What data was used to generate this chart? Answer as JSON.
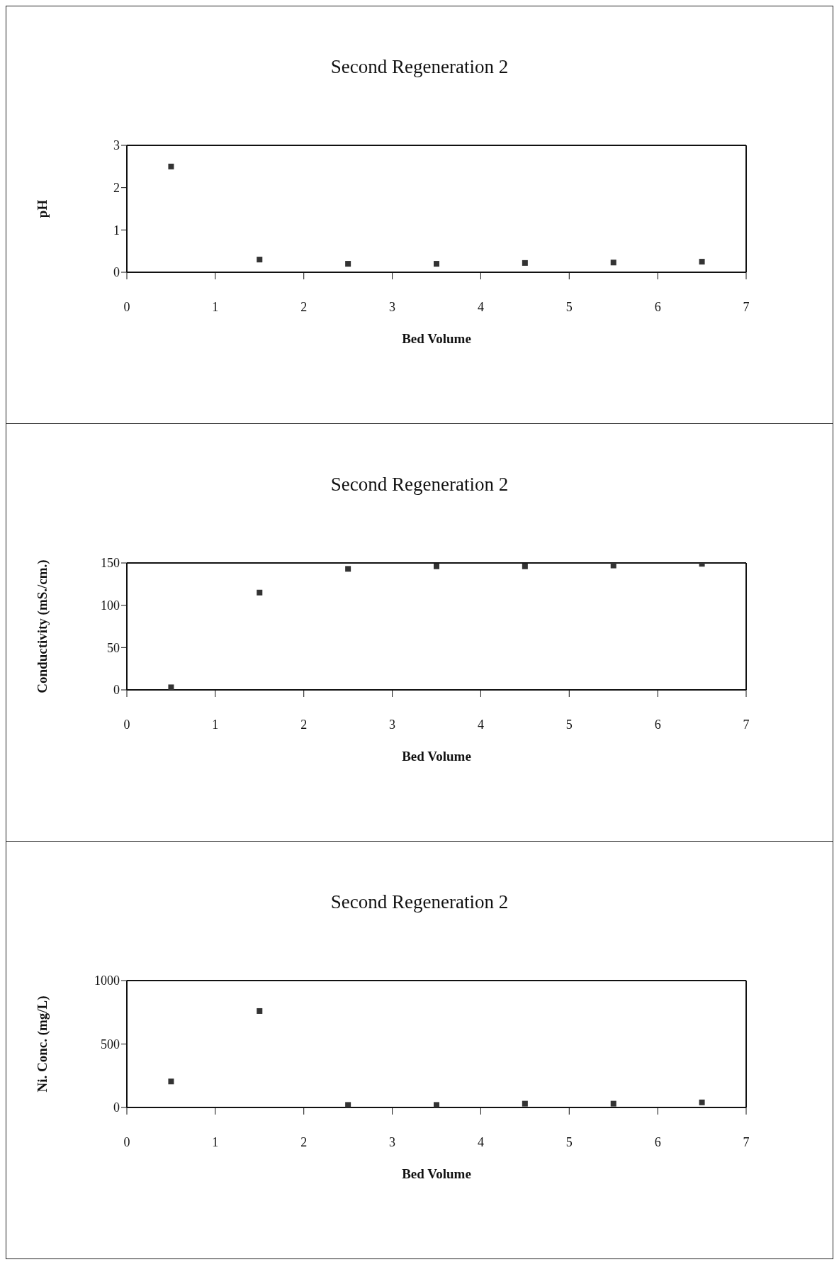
{
  "chart_data": [
    {
      "type": "scatter",
      "title": "Second Regeneration 2",
      "xlabel": "Bed Volume",
      "ylabel": "pH",
      "x": [
        0.5,
        1.5,
        2.5,
        3.5,
        4.5,
        5.5,
        6.5
      ],
      "series": [
        {
          "color": "#333333",
          "values": [
            2.5,
            0.3,
            0.2,
            0.2,
            0.22,
            0.23,
            0.25
          ]
        }
      ],
      "xlim": [
        0,
        7
      ],
      "xticks": [
        0,
        1,
        2,
        3,
        4,
        5,
        6,
        7
      ],
      "ylim": [
        0,
        3
      ],
      "yticks": [
        0,
        1,
        2,
        3
      ],
      "marker": "square",
      "grid": false,
      "legend": false
    },
    {
      "type": "scatter",
      "title": "Second Regeneration 2",
      "xlabel": "Bed Volume",
      "ylabel": "Conductivity (mS./cm.)",
      "x": [
        0.5,
        1.5,
        2.5,
        3.5,
        4.5,
        5.5,
        6.5
      ],
      "series": [
        {
          "color": "#333333",
          "values": [
            3,
            115,
            143,
            146,
            146,
            147,
            149
          ]
        }
      ],
      "xlim": [
        0,
        7
      ],
      "xticks": [
        0,
        1,
        2,
        3,
        4,
        5,
        6,
        7
      ],
      "ylim": [
        0,
        150
      ],
      "yticks": [
        0,
        50,
        100,
        150
      ],
      "marker": "square",
      "grid": false,
      "legend": false
    },
    {
      "type": "scatter",
      "title": "Second Regeneration 2",
      "xlabel": "Bed Volume",
      "ylabel": "Ni. Conc. (mg/L)",
      "x": [
        0.5,
        1.5,
        2.5,
        3.5,
        4.5,
        5.5,
        6.5
      ],
      "series": [
        {
          "color": "#333333",
          "values": [
            205,
            760,
            20,
            20,
            30,
            30,
            40
          ]
        }
      ],
      "xlim": [
        0,
        7
      ],
      "xticks": [
        0,
        1,
        2,
        3,
        4,
        5,
        6,
        7
      ],
      "ylim": [
        0,
        1000
      ],
      "yticks": [
        0,
        500,
        1000
      ],
      "marker": "square",
      "grid": false,
      "legend": false
    }
  ]
}
